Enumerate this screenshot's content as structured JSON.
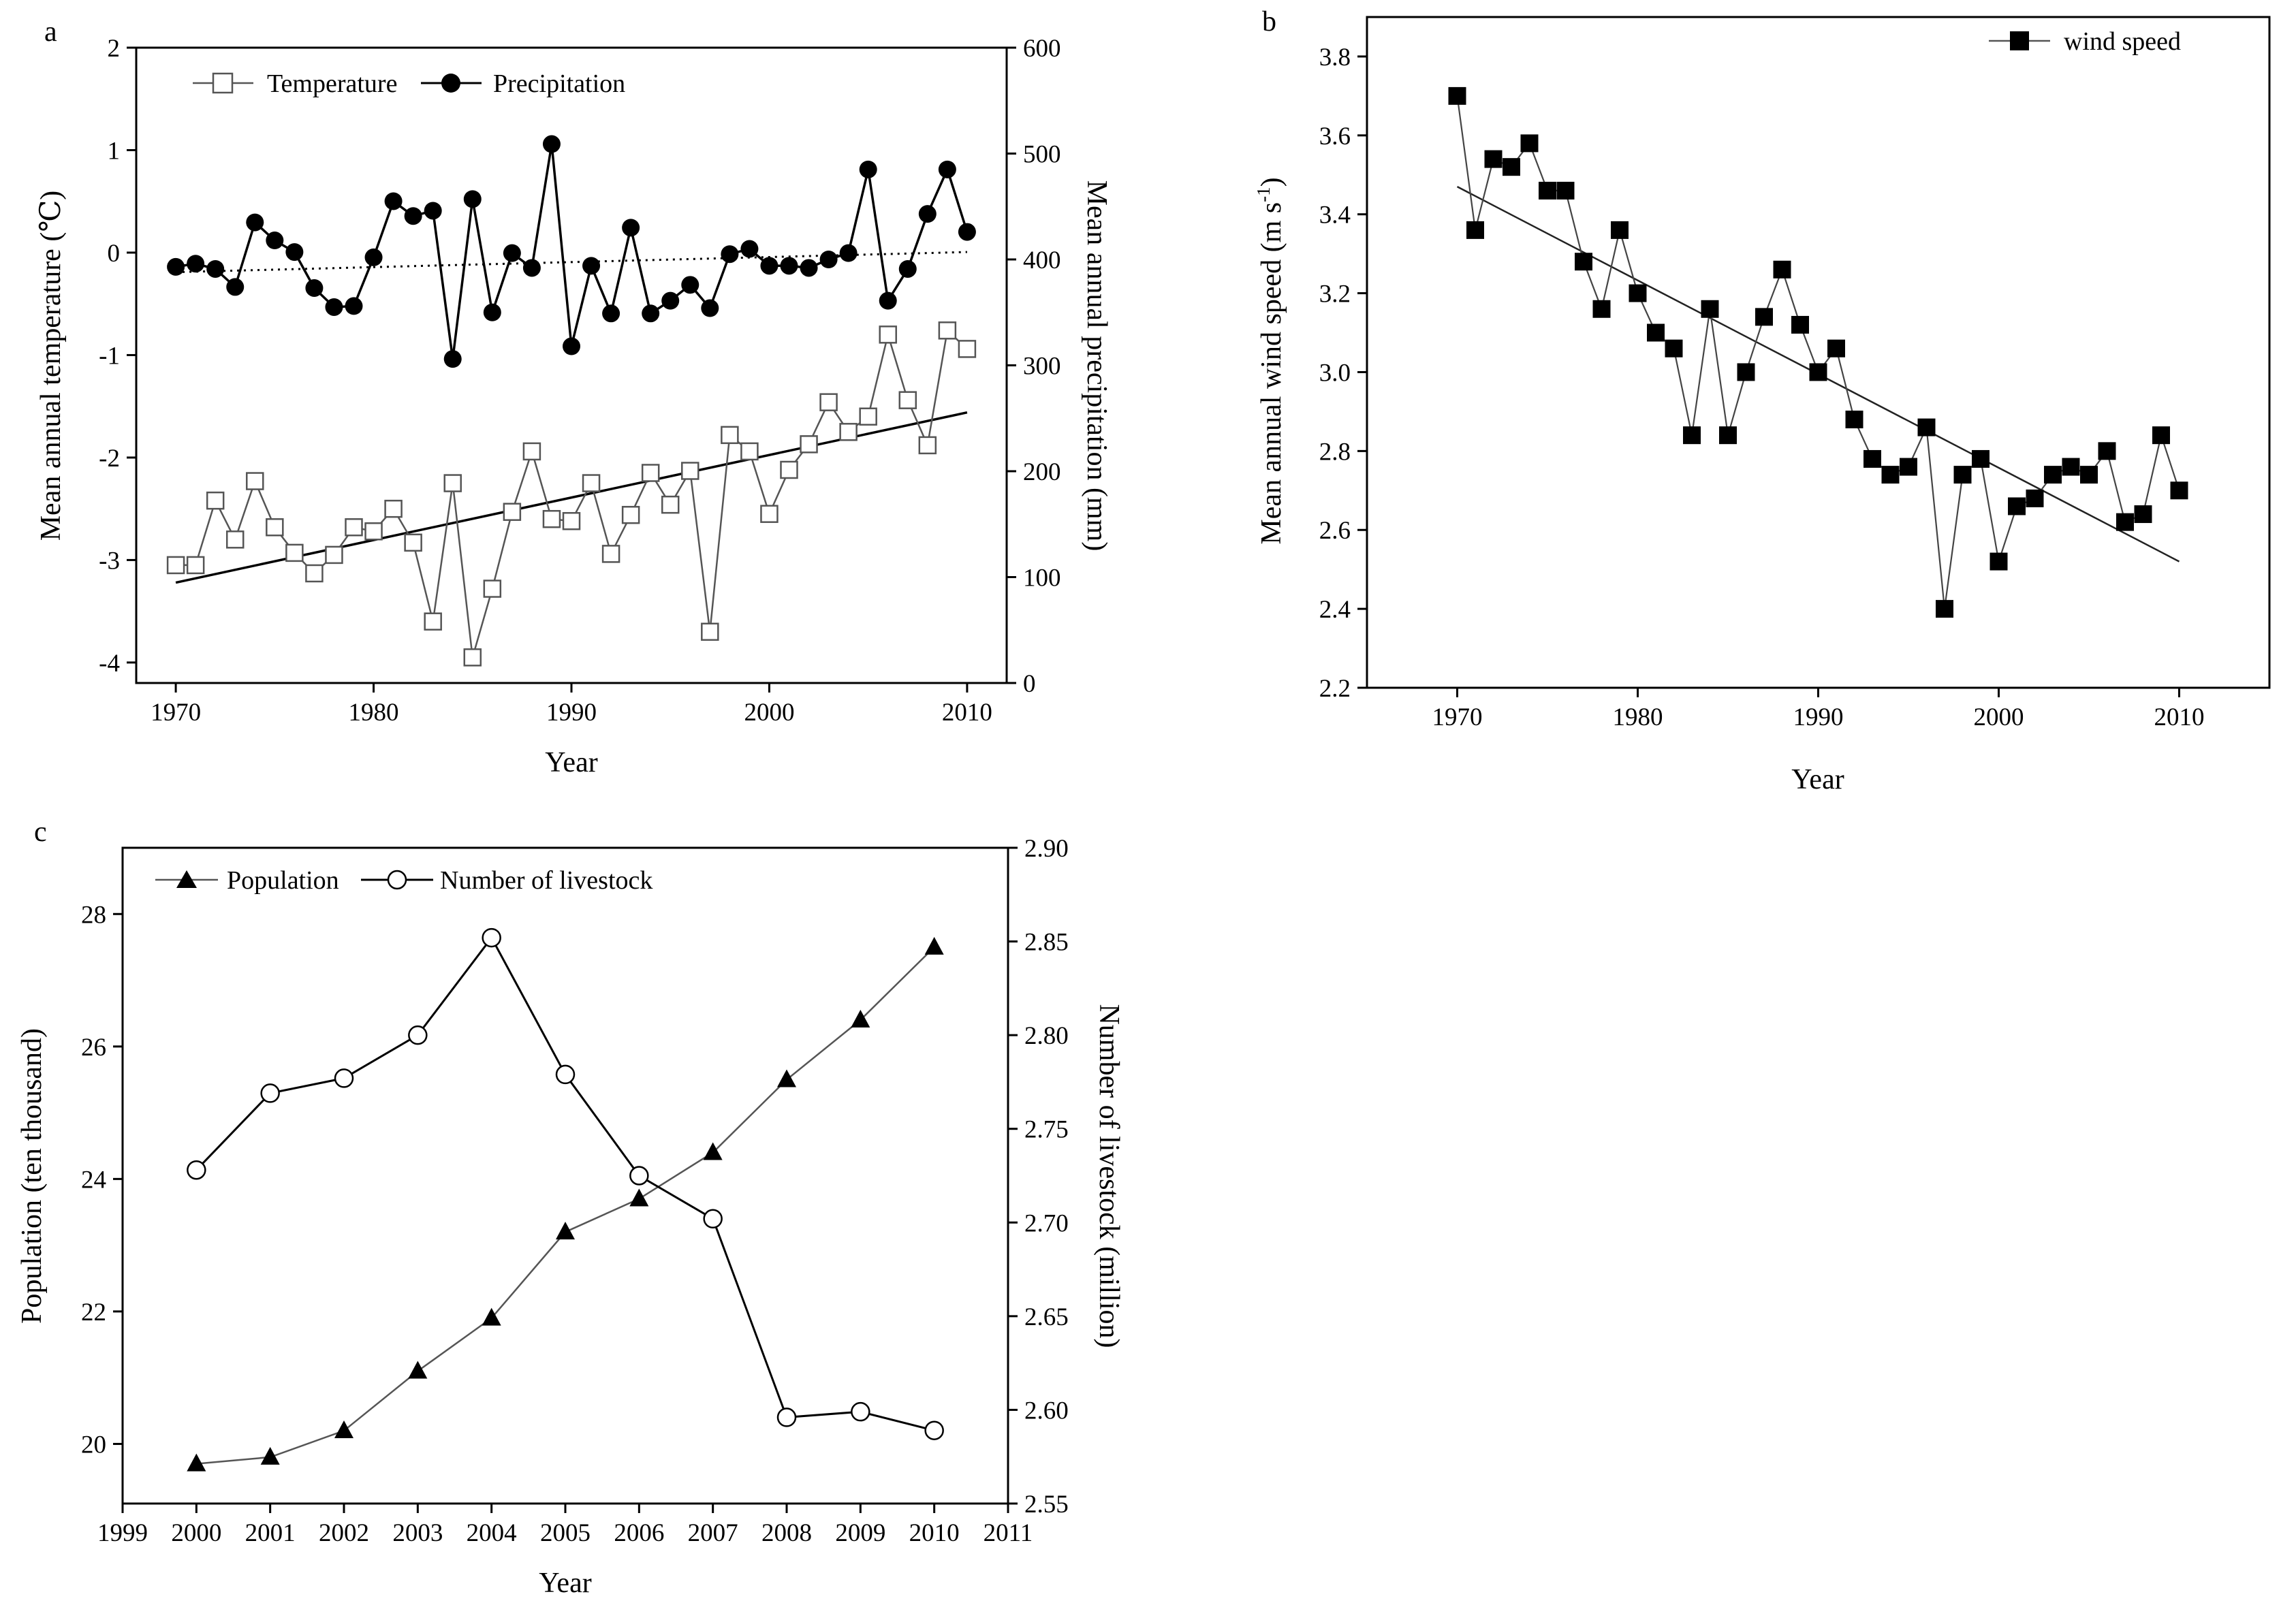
{
  "chart_data": [
    {
      "id": "a",
      "panel_label": "a",
      "type": "line",
      "xlabel": "Year",
      "ylabel": "Mean annual temperature (℃)",
      "y2label": "Mean annual precipitation (mm)",
      "xlim": [
        1968,
        2012
      ],
      "ylim": [
        -4.2,
        2
      ],
      "y2lim": [
        0,
        600
      ],
      "xticks": [
        1970,
        1980,
        1990,
        2000,
        2010
      ],
      "yticks": [
        -4,
        -3,
        -2,
        -1,
        0,
        1,
        2
      ],
      "y2ticks": [
        0,
        100,
        200,
        300,
        400,
        500,
        600
      ],
      "legend_position": "top-left",
      "x": [
        1970,
        1971,
        1972,
        1973,
        1974,
        1975,
        1976,
        1977,
        1978,
        1979,
        1980,
        1981,
        1982,
        1983,
        1984,
        1985,
        1986,
        1987,
        1988,
        1989,
        1990,
        1991,
        1992,
        1993,
        1994,
        1995,
        1996,
        1997,
        1998,
        1999,
        2000,
        2001,
        2002,
        2003,
        2004,
        2005,
        2006,
        2007,
        2008,
        2009,
        2010
      ],
      "series": [
        {
          "name": "Temperature",
          "axis": "left",
          "marker": "open-square",
          "values": [
            -3.05,
            -3.05,
            -2.42,
            -2.8,
            -2.23,
            -2.68,
            -2.93,
            -3.13,
            -2.95,
            -2.68,
            -2.72,
            -2.5,
            -2.83,
            -3.6,
            -2.25,
            -3.95,
            -3.28,
            -2.53,
            -1.94,
            -2.6,
            -2.62,
            -2.25,
            -2.94,
            -2.56,
            -2.15,
            -2.46,
            -2.13,
            -3.7,
            -1.78,
            -1.94,
            -2.55,
            -2.12,
            -1.87,
            -1.46,
            -1.75,
            -1.6,
            -0.8,
            -1.44,
            -1.88,
            -0.76,
            -0.94
          ]
        },
        {
          "name": "Precipitation",
          "axis": "right",
          "marker": "filled-circle",
          "values": [
            393,
            396,
            391,
            374,
            435,
            418,
            407,
            373,
            355,
            356,
            402,
            455,
            441,
            446,
            306,
            457,
            350,
            406,
            392,
            509,
            318,
            394,
            349,
            430,
            349,
            361,
            376,
            354,
            405,
            410,
            394,
            394,
            392,
            400,
            406,
            485,
            361,
            391,
            443,
            485,
            426
          ]
        }
      ],
      "trendlines": [
        {
          "of": "Temperature",
          "style": "solid",
          "x": [
            1970,
            2010
          ],
          "values": [
            -3.22,
            -1.56
          ]
        },
        {
          "of": "Precipitation",
          "style": "dotted",
          "x": [
            1970,
            2010
          ],
          "values": [
            388,
            407
          ]
        }
      ]
    },
    {
      "id": "b",
      "panel_label": "b",
      "type": "line",
      "xlabel": "Year",
      "ylabel_text": "Mean annual wind speed (m s",
      "ylabel_sup": "-1",
      "ylabel_end": ")",
      "xlim": [
        1965,
        2015
      ],
      "ylim": [
        2.2,
        3.9
      ],
      "xticks": [
        1970,
        1980,
        1990,
        2000,
        2010
      ],
      "yticks": [
        "2.2",
        "2.4",
        "2.6",
        "2.8",
        "3.0",
        "3.2",
        "3.4",
        "3.6",
        "3.8"
      ],
      "legend_position": "top-right",
      "x": [
        1970,
        1971,
        1972,
        1973,
        1974,
        1975,
        1976,
        1977,
        1978,
        1979,
        1980,
        1981,
        1982,
        1983,
        1984,
        1985,
        1986,
        1987,
        1988,
        1989,
        1990,
        1991,
        1992,
        1993,
        1994,
        1995,
        1996,
        1997,
        1998,
        1999,
        2000,
        2001,
        2002,
        2003,
        2004,
        2005,
        2006,
        2007,
        2008,
        2009,
        2010
      ],
      "series": [
        {
          "name": "wind speed",
          "marker": "filled-square",
          "values": [
            3.7,
            3.36,
            3.54,
            3.52,
            3.58,
            3.46,
            3.46,
            3.28,
            3.16,
            3.36,
            3.2,
            3.1,
            3.06,
            2.84,
            3.16,
            2.84,
            3.0,
            3.14,
            3.26,
            3.12,
            3.0,
            3.06,
            2.88,
            2.78,
            2.74,
            2.76,
            2.86,
            2.4,
            2.74,
            2.78,
            2.52,
            2.66,
            2.68,
            2.74,
            2.76,
            2.74,
            2.8,
            2.62,
            2.64,
            2.84,
            2.7
          ]
        }
      ],
      "trendlines": [
        {
          "of": "wind speed",
          "style": "solid",
          "x": [
            1970,
            2010
          ],
          "values": [
            3.47,
            2.52
          ]
        }
      ]
    },
    {
      "id": "c",
      "panel_label": "c",
      "type": "line",
      "xlabel": "Year",
      "ylabel": "Population (ten thousand)",
      "y2label": "Number of livestock (million)",
      "xlim": [
        1999,
        2011
      ],
      "ylim": [
        19.1,
        29
      ],
      "y2lim": [
        2.55,
        2.9
      ],
      "xticks": [
        1999,
        2000,
        2001,
        2002,
        2003,
        2004,
        2005,
        2006,
        2007,
        2008,
        2009,
        2010,
        2011
      ],
      "yticks": [
        20,
        22,
        24,
        26,
        28
      ],
      "y2ticks": [
        "2.55",
        "2.60",
        "2.65",
        "2.70",
        "2.75",
        "2.80",
        "2.85",
        "2.90"
      ],
      "legend_position": "top-left",
      "x": [
        2000,
        2001,
        2002,
        2003,
        2004,
        2005,
        2006,
        2007,
        2008,
        2009,
        2010
      ],
      "series": [
        {
          "name": "Population",
          "axis": "left",
          "marker": "filled-triangle",
          "values": [
            19.7,
            19.8,
            20.2,
            21.1,
            21.9,
            23.2,
            23.7,
            24.4,
            25.5,
            26.4,
            27.5
          ]
        },
        {
          "name": "Number of livestock",
          "axis": "right",
          "marker": "open-circle",
          "values": [
            2.728,
            2.769,
            2.777,
            2.8,
            2.852,
            2.779,
            2.725,
            2.702,
            2.596,
            2.599,
            2.589
          ]
        }
      ]
    }
  ]
}
